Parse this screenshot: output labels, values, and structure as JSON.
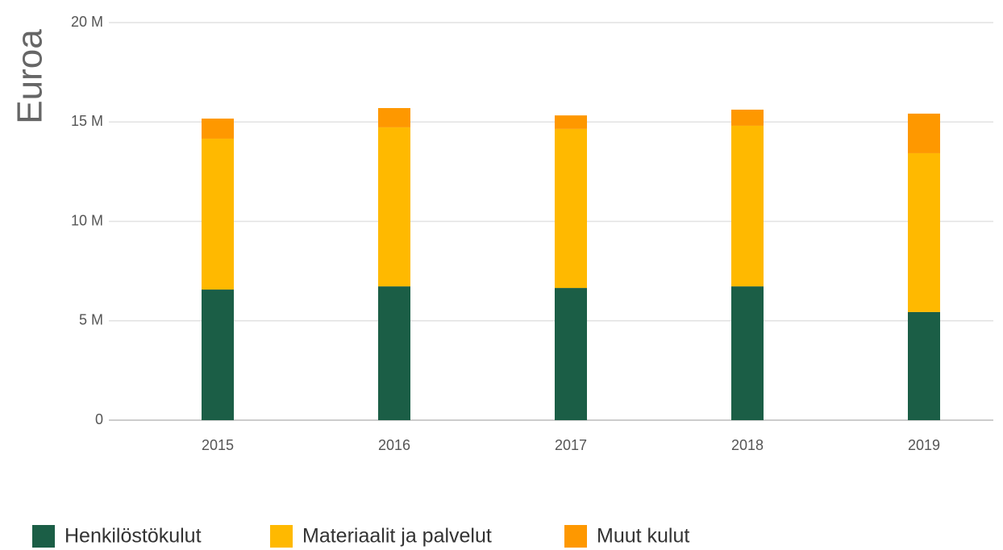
{
  "chart_data": {
    "type": "stacked_bar",
    "y_label": "Euroa",
    "categories": [
      "2015",
      "2016",
      "2017",
      "2018",
      "2019"
    ],
    "series": [
      {
        "name": "Henkilöstökulut",
        "color": "#1b5e46",
        "values": [
          6570000,
          6730000,
          6650000,
          6730000,
          5440000
        ]
      },
      {
        "name": "Materiaalit ja palvelut",
        "color": "#ffb900",
        "values": [
          7590000,
          8000000,
          8000000,
          8080000,
          7990000
        ]
      },
      {
        "name": "Muut kulut",
        "color": "#fe9800",
        "values": [
          1010000,
          970000,
          680000,
          810000,
          1990000
        ]
      }
    ],
    "ylim": [
      0,
      20000000
    ],
    "yticks": [
      {
        "value": 0,
        "label": "0"
      },
      {
        "value": 5000000,
        "label": "5 M"
      },
      {
        "value": 10000000,
        "label": "10 M"
      },
      {
        "value": 15000000,
        "label": "15 M"
      },
      {
        "value": 20000000,
        "label": "20 M"
      }
    ],
    "grid": true,
    "legend": "bottom"
  }
}
